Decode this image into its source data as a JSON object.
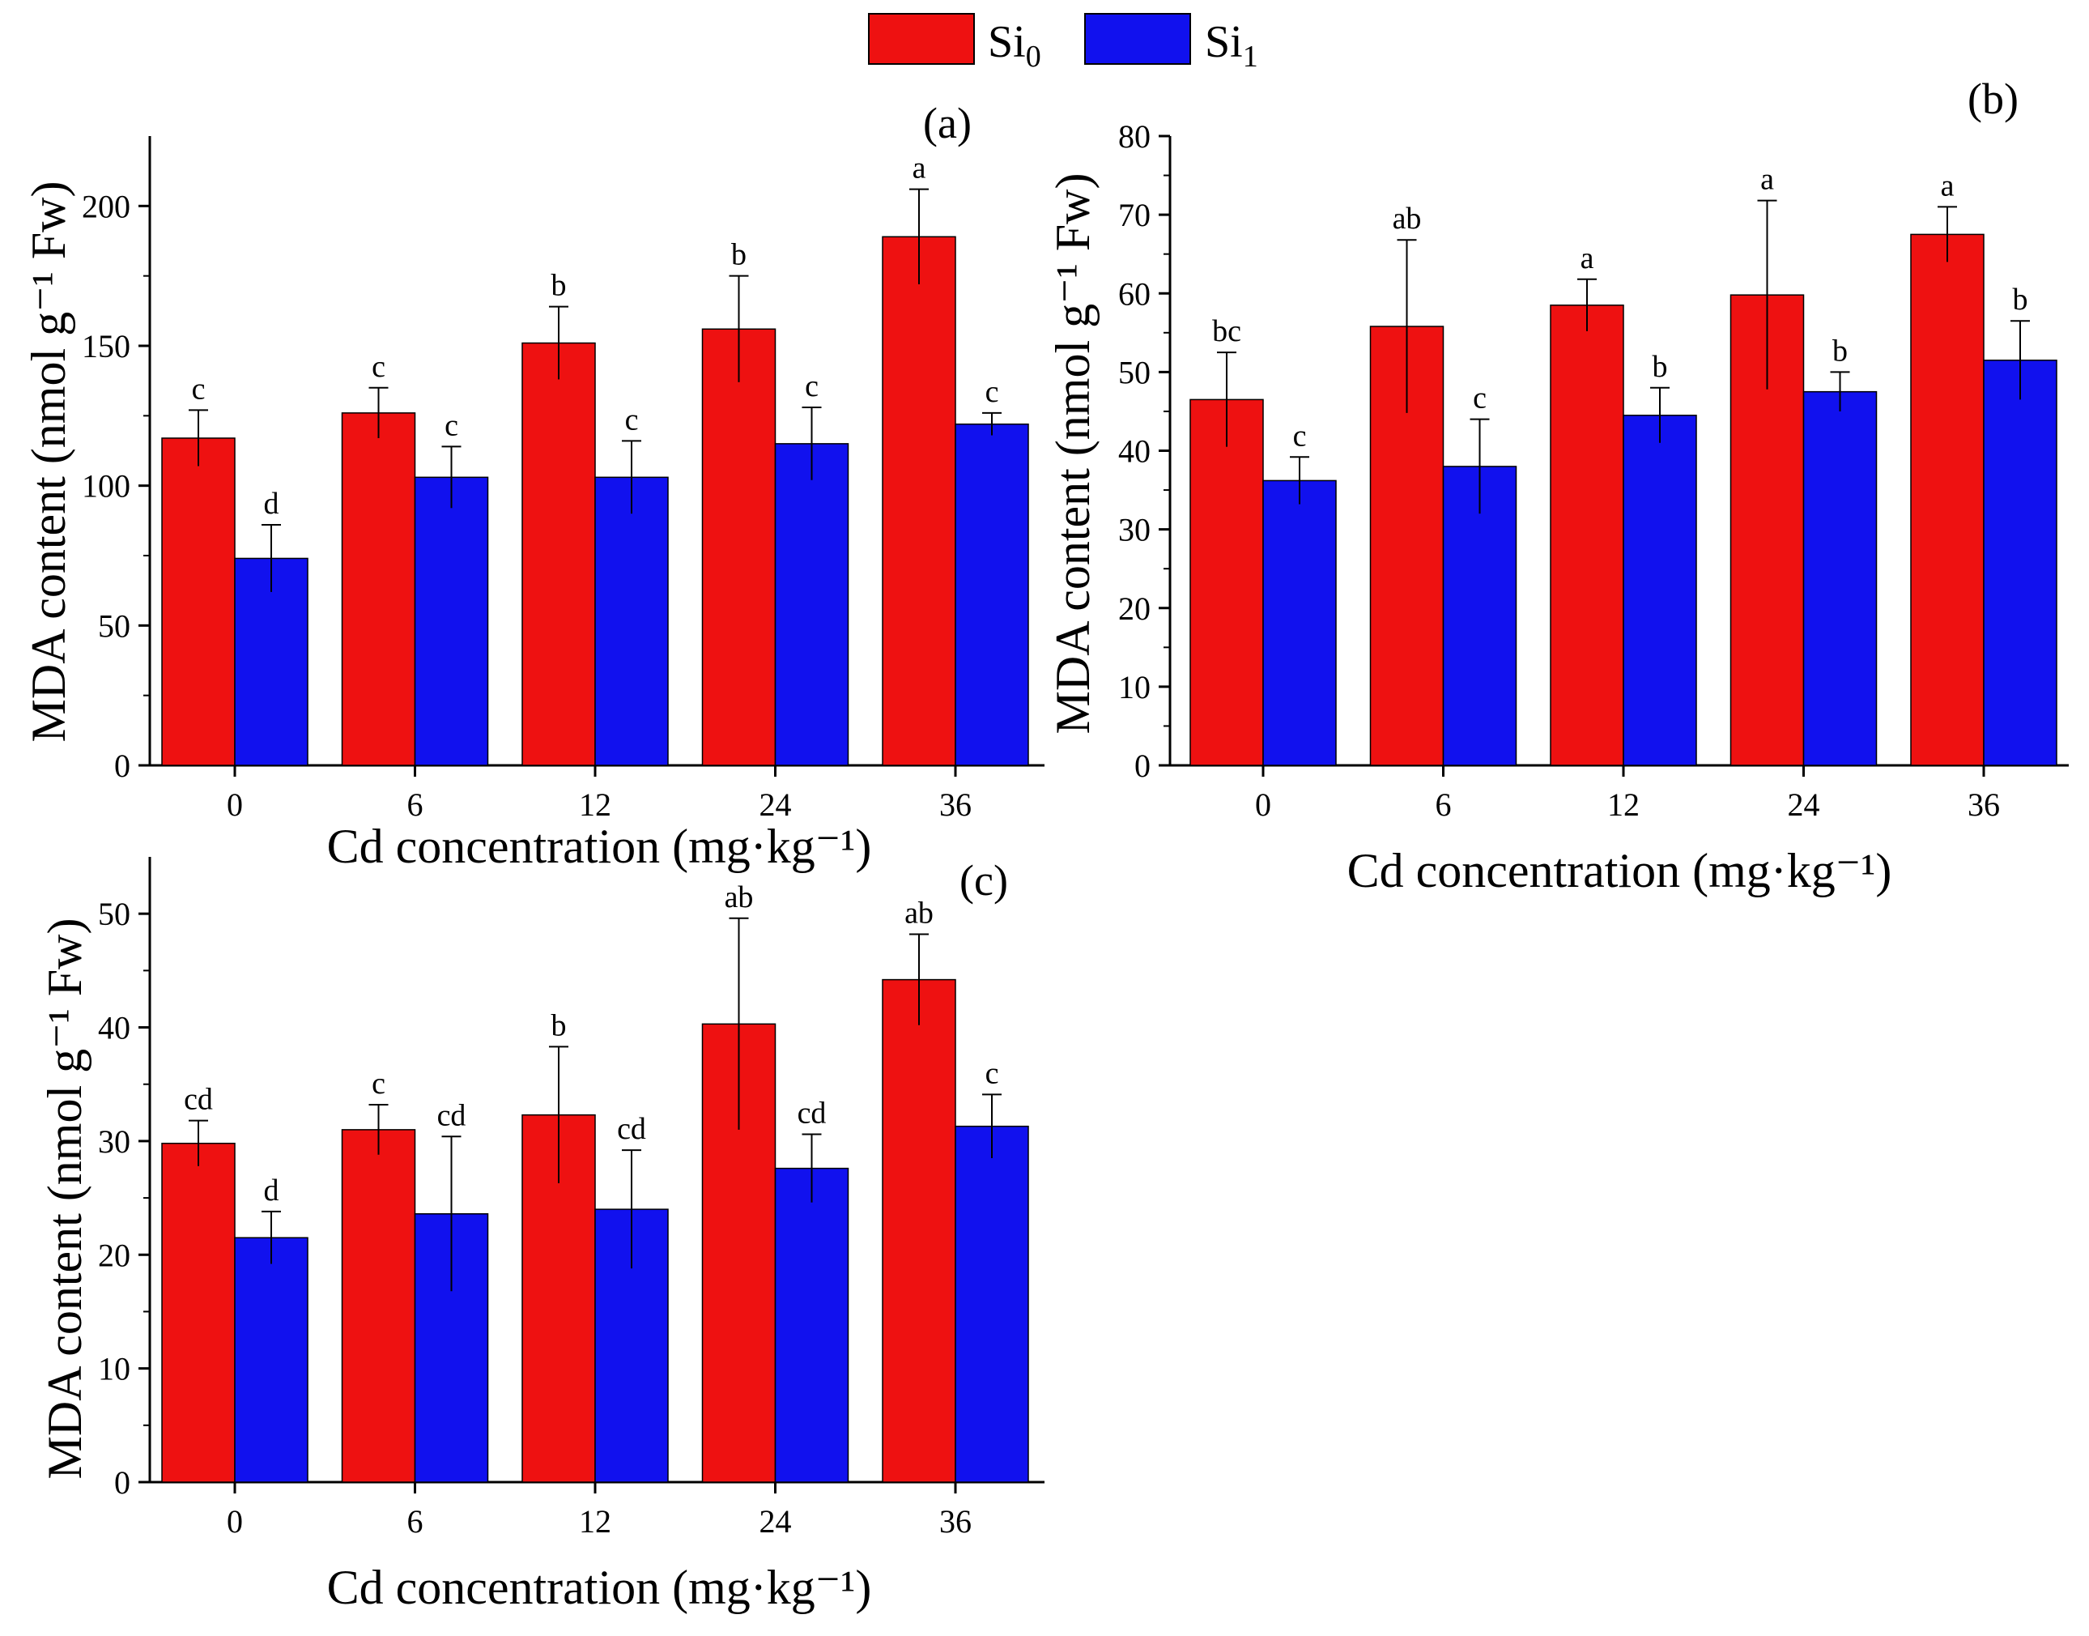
{
  "legend": {
    "items": [
      {
        "base": "Si",
        "sub": "0",
        "color": "#ee1111"
      },
      {
        "base": "Si",
        "sub": "1",
        "color": "#1111ee"
      }
    ]
  },
  "chart_data": [
    {
      "type": "bar",
      "panel_label": "(a)",
      "categories": [
        "0",
        "6",
        "12",
        "24",
        "36"
      ],
      "ylabel": "MDA content (nmol g⁻¹ Fw)",
      "xlabel": "Cd concentration (mg·kg⁻¹)",
      "ylim": [
        0,
        225
      ],
      "yticks": [
        0,
        50,
        100,
        150,
        200
      ],
      "series": [
        {
          "name": "Si0",
          "color": "#ee1111",
          "values": [
            117,
            126,
            151,
            156,
            189
          ],
          "errors": [
            10,
            9,
            13,
            19,
            17
          ],
          "labels": [
            "c",
            "c",
            "b",
            "b",
            "a"
          ]
        },
        {
          "name": "Si1",
          "color": "#1111ee",
          "values": [
            74,
            103,
            103,
            115,
            122
          ],
          "errors": [
            12,
            11,
            13,
            13,
            4
          ],
          "labels": [
            "d",
            "c",
            "c",
            "c",
            "c"
          ]
        }
      ]
    },
    {
      "type": "bar",
      "panel_label": "(b)",
      "categories": [
        "0",
        "6",
        "12",
        "24",
        "36"
      ],
      "ylabel": "MDA content (nmol g⁻¹ Fw)",
      "xlabel": "Cd concentration (mg·kg⁻¹)",
      "ylim": [
        0,
        80
      ],
      "yticks": [
        0,
        10,
        20,
        30,
        40,
        50,
        60,
        70,
        80
      ],
      "series": [
        {
          "name": "Si0",
          "color": "#ee1111",
          "values": [
            46.5,
            55.8,
            58.5,
            59.8,
            67.5
          ],
          "errors": [
            6,
            11,
            3.3,
            12,
            3.5
          ],
          "labels": [
            "bc",
            "ab",
            "a",
            "a",
            "a"
          ]
        },
        {
          "name": "Si1",
          "color": "#1111ee",
          "values": [
            36.2,
            38,
            44.5,
            47.5,
            51.5
          ],
          "errors": [
            3,
            6,
            3.5,
            2.5,
            5
          ],
          "labels": [
            "c",
            "c",
            "b",
            "b",
            "b"
          ]
        }
      ]
    },
    {
      "type": "bar",
      "panel_label": "(c)",
      "categories": [
        "0",
        "6",
        "12",
        "24",
        "36"
      ],
      "ylabel": "MDA content (nmol g⁻¹ Fw)",
      "xlabel": "Cd concentration (mg·kg⁻¹)",
      "ylim": [
        0,
        55
      ],
      "yticks": [
        0,
        10,
        20,
        30,
        40,
        50
      ],
      "series": [
        {
          "name": "Si0",
          "color": "#ee1111",
          "values": [
            29.8,
            31,
            32.3,
            40.3,
            44.2
          ],
          "errors": [
            2,
            2.2,
            6,
            9.3,
            4
          ],
          "labels": [
            "cd",
            "c",
            "b",
            "ab",
            "ab"
          ]
        },
        {
          "name": "Si1",
          "color": "#1111ee",
          "values": [
            21.5,
            23.6,
            24,
            27.6,
            31.3
          ],
          "errors": [
            2.3,
            6.8,
            5.2,
            3,
            2.8
          ],
          "labels": [
            "d",
            "cd",
            "cd",
            "cd",
            "c"
          ]
        }
      ]
    }
  ]
}
